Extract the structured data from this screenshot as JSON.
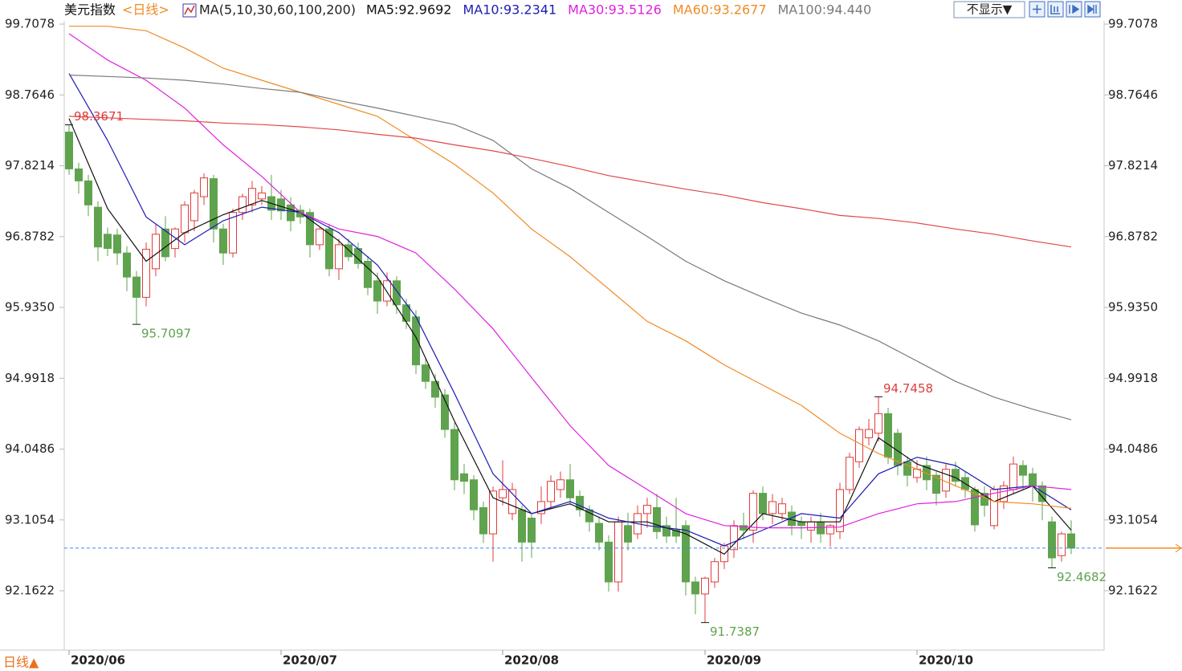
{
  "chart_data": {
    "type": "candlestick",
    "title": "美元指数",
    "subtitle": "<日线>",
    "ma_label": "MA(5,10,30,60,100,200)",
    "hide_button": "不显示▼",
    "period_tab": "日线▲",
    "up_color": "#e03c3c",
    "down_color": "#5fa34e",
    "ylim": [
      91.393,
      100.029
    ],
    "yticks": [
      99.7078,
      98.7646,
      97.8214,
      96.8782,
      {
        "value": 95.935,
        "label": "95.9350"
      },
      94.9918,
      94.0486,
      93.1054,
      92.1622
    ],
    "categories": [
      "2020/06",
      null,
      null,
      null,
      null,
      null,
      null,
      null,
      null,
      null,
      null,
      null,
      null,
      null,
      null,
      null,
      null,
      null,
      null,
      null,
      null,
      null,
      "2020/07",
      null,
      null,
      null,
      null,
      null,
      null,
      null,
      null,
      null,
      null,
      null,
      null,
      null,
      null,
      null,
      null,
      null,
      null,
      null,
      null,
      null,
      null,
      "2020/08",
      null,
      null,
      null,
      null,
      null,
      null,
      null,
      null,
      null,
      null,
      null,
      null,
      null,
      null,
      null,
      null,
      null,
      null,
      null,
      null,
      "2020/09",
      null,
      null,
      null,
      null,
      null,
      null,
      null,
      null,
      null,
      null,
      null,
      null,
      null,
      null,
      null,
      null,
      null,
      null,
      null,
      null,
      null,
      "2020/10",
      null,
      null,
      null,
      null,
      null,
      null,
      null,
      null,
      null,
      null,
      null,
      null,
      null,
      null,
      null,
      null
    ],
    "candles": [
      [
        98.27,
        98.3671,
        97.7,
        97.78
      ],
      [
        97.78,
        97.86,
        97.45,
        97.62
      ],
      [
        97.62,
        97.7,
        97.15,
        97.3
      ],
      [
        97.27,
        97.35,
        96.55,
        96.74
      ],
      [
        96.91,
        97.0,
        96.62,
        96.72
      ],
      [
        96.9,
        96.98,
        96.5,
        96.66
      ],
      [
        96.66,
        96.75,
        96.15,
        96.34
      ],
      [
        96.34,
        96.42,
        95.7097,
        96.07
      ],
      [
        96.07,
        96.8,
        95.95,
        96.71
      ],
      [
        96.45,
        97.05,
        96.35,
        96.91
      ],
      [
        96.98,
        97.15,
        96.55,
        96.61
      ],
      [
        96.72,
        97.0,
        96.6,
        96.98
      ],
      [
        96.93,
        97.35,
        96.8,
        97.3
      ],
      [
        97.09,
        97.5,
        96.95,
        97.46
      ],
      [
        97.41,
        97.72,
        97.3,
        97.66
      ],
      [
        97.65,
        97.7,
        96.8,
        96.98
      ],
      [
        96.98,
        97.05,
        96.5,
        96.66
      ],
      [
        96.66,
        97.25,
        96.6,
        97.2
      ],
      [
        97.2,
        97.45,
        97.1,
        97.41
      ],
      [
        97.3,
        97.62,
        97.2,
        97.52
      ],
      [
        97.38,
        97.55,
        97.3,
        97.46
      ],
      [
        97.41,
        97.7,
        97.1,
        97.23
      ],
      [
        97.38,
        97.5,
        97.1,
        97.22
      ],
      [
        97.3,
        97.4,
        96.95,
        97.09
      ],
      [
        97.23,
        97.3,
        97.05,
        97.14
      ],
      [
        97.2,
        97.25,
        96.6,
        96.77
      ],
      [
        96.77,
        97.0,
        96.7,
        96.98
      ],
      [
        96.98,
        97.05,
        96.35,
        96.45
      ],
      [
        96.45,
        96.85,
        96.3,
        96.77
      ],
      [
        96.77,
        96.85,
        96.55,
        96.61
      ],
      [
        96.72,
        96.8,
        96.45,
        96.52
      ],
      [
        96.55,
        96.62,
        96.1,
        96.2
      ],
      [
        96.29,
        96.4,
        95.85,
        96.02
      ],
      [
        96.02,
        96.4,
        95.95,
        96.29
      ],
      [
        96.29,
        96.35,
        95.85,
        95.97
      ],
      [
        95.97,
        96.05,
        95.65,
        95.75
      ],
      [
        95.81,
        95.9,
        95.05,
        95.17
      ],
      [
        95.17,
        95.25,
        94.85,
        94.95
      ],
      [
        94.95,
        95.05,
        94.6,
        94.74
      ],
      [
        94.77,
        94.85,
        94.2,
        94.31
      ],
      [
        94.31,
        94.4,
        93.5,
        93.64
      ],
      [
        93.72,
        93.85,
        93.45,
        93.62
      ],
      [
        93.64,
        93.7,
        93.1,
        93.24
      ],
      [
        93.27,
        93.35,
        92.8,
        92.92
      ],
      [
        92.92,
        93.55,
        92.55,
        93.49
      ],
      [
        93.4,
        93.9,
        93.3,
        93.51
      ],
      [
        93.19,
        93.6,
        93.1,
        93.51
      ],
      [
        93.24,
        93.3,
        92.55,
        92.81
      ],
      [
        93.13,
        93.2,
        92.6,
        92.81
      ],
      [
        93.19,
        93.55,
        93.05,
        93.35
      ],
      [
        93.35,
        93.7,
        93.25,
        93.62
      ],
      [
        93.51,
        93.75,
        93.4,
        93.64
      ],
      [
        93.64,
        93.85,
        93.3,
        93.4
      ],
      [
        93.42,
        93.5,
        93.15,
        93.24
      ],
      [
        93.24,
        93.3,
        92.95,
        93.08
      ],
      [
        93.06,
        93.15,
        92.7,
        92.81
      ],
      [
        92.81,
        92.9,
        92.15,
        92.28
      ],
      [
        92.28,
        93.15,
        92.15,
        93.08
      ],
      [
        93.03,
        93.2,
        92.7,
        92.81
      ],
      [
        92.92,
        93.3,
        92.85,
        93.19
      ],
      [
        93.19,
        93.4,
        93.0,
        93.3
      ],
      [
        93.27,
        93.45,
        92.85,
        92.95
      ],
      [
        93.03,
        93.15,
        92.8,
        92.89
      ],
      [
        92.97,
        93.4,
        92.8,
        92.89
      ],
      [
        93.03,
        93.1,
        92.1,
        92.28
      ],
      [
        92.28,
        92.35,
        91.85,
        92.12
      ],
      [
        92.12,
        92.35,
        91.7387,
        92.33
      ],
      [
        92.28,
        92.6,
        92.2,
        92.55
      ],
      [
        92.55,
        92.8,
        92.45,
        92.76
      ],
      [
        92.71,
        93.1,
        92.6,
        93.03
      ],
      [
        93.03,
        93.2,
        92.85,
        92.97
      ],
      [
        92.97,
        93.5,
        92.8,
        93.46
      ],
      [
        93.46,
        93.55,
        93.1,
        93.19
      ],
      [
        93.19,
        93.45,
        93.05,
        93.35
      ],
      [
        93.19,
        93.4,
        93.1,
        93.32
      ],
      [
        93.21,
        93.3,
        92.9,
        93.03
      ],
      [
        93.08,
        93.15,
        92.85,
        93.03
      ],
      [
        92.97,
        93.15,
        92.8,
        93.08
      ],
      [
        93.08,
        93.2,
        92.8,
        92.92
      ],
      [
        92.92,
        93.05,
        92.75,
        93.03
      ],
      [
        92.95,
        93.6,
        92.85,
        93.51
      ],
      [
        93.51,
        94.0,
        93.45,
        93.94
      ],
      [
        93.88,
        94.35,
        93.8,
        94.31
      ],
      [
        94.2,
        94.45,
        94.1,
        94.31
      ],
      [
        94.26,
        94.7458,
        94.15,
        94.52
      ],
      [
        94.52,
        94.6,
        93.85,
        93.94
      ],
      [
        94.26,
        94.32,
        93.7,
        93.83
      ],
      [
        93.88,
        93.95,
        93.55,
        93.7
      ],
      [
        93.67,
        93.9,
        93.6,
        93.78
      ],
      [
        93.83,
        93.95,
        93.5,
        93.64
      ],
      [
        93.7,
        93.75,
        93.3,
        93.46
      ],
      [
        93.49,
        93.85,
        93.4,
        93.78
      ],
      [
        93.78,
        93.88,
        93.55,
        93.62
      ],
      [
        93.67,
        93.75,
        93.4,
        93.51
      ],
      [
        93.51,
        93.55,
        92.95,
        93.04
      ],
      [
        93.46,
        93.55,
        93.15,
        93.3
      ],
      [
        93.03,
        93.56,
        92.98,
        93.51
      ],
      [
        93.35,
        93.62,
        93.25,
        93.56
      ],
      [
        93.51,
        93.95,
        93.45,
        93.85
      ],
      [
        93.83,
        93.9,
        93.5,
        93.7
      ],
      [
        93.72,
        93.8,
        93.35,
        93.56
      ],
      [
        93.56,
        93.62,
        93.1,
        93.35
      ],
      [
        93.08,
        93.15,
        92.4682,
        92.6
      ],
      [
        92.63,
        92.95,
        92.55,
        92.92
      ],
      [
        92.92,
        93.1,
        92.65,
        92.73
      ]
    ],
    "lines": {
      "x": [
        0,
        4,
        8,
        12,
        16,
        20,
        24,
        28,
        32,
        36,
        40,
        44,
        48,
        52,
        56,
        60,
        64,
        68,
        72,
        76,
        80,
        84,
        88,
        92,
        96,
        100,
        104
      ],
      "series": [
        {
          "name": "MA5:92.9692",
          "color": "#111111",
          "values": [
            98.45,
            97.25,
            96.55,
            96.93,
            97.17,
            97.36,
            97.2,
            96.82,
            96.34,
            95.54,
            94.42,
            93.4,
            93.19,
            93.32,
            93.08,
            93.08,
            92.92,
            92.65,
            93.19,
            93.08,
            93.08,
            94.2,
            93.85,
            93.67,
            93.35,
            93.56,
            92.97
          ]
        },
        {
          "name": "MA10:93.2341",
          "color": "#1c1cb4",
          "values": [
            99.05,
            98.16,
            97.14,
            96.77,
            97.09,
            97.27,
            97.2,
            96.93,
            96.5,
            95.81,
            94.79,
            93.72,
            93.19,
            93.35,
            93.13,
            93.03,
            92.97,
            92.76,
            92.97,
            93.19,
            93.13,
            93.72,
            93.94,
            93.83,
            93.51,
            93.56,
            93.24
          ]
        },
        {
          "name": "MA30:93.5126",
          "color": "#e020e0",
          "values": [
            99.58,
            99.23,
            98.96,
            98.59,
            98.1,
            97.68,
            97.2,
            96.98,
            96.88,
            96.66,
            96.18,
            95.65,
            95.0,
            94.36,
            93.83,
            93.51,
            93.19,
            93.03,
            93.0,
            93.0,
            93.01,
            93.19,
            93.32,
            93.35,
            93.46,
            93.56,
            93.51
          ]
        },
        {
          "name": "MA60:93.2677",
          "color": "#f08a24",
          "values": [
            99.68,
            99.68,
            99.62,
            99.39,
            99.12,
            98.96,
            98.8,
            98.64,
            98.48,
            98.16,
            97.84,
            97.46,
            96.98,
            96.61,
            96.18,
            95.75,
            95.49,
            95.17,
            94.9,
            94.63,
            94.26,
            93.99,
            93.78,
            93.56,
            93.35,
            93.32,
            93.26
          ]
        },
        {
          "name": "MA100:94.440",
          "color": "#7a7a7a",
          "values": [
            99.03,
            99.01,
            98.99,
            98.96,
            98.91,
            98.85,
            98.8,
            98.69,
            98.59,
            98.48,
            98.37,
            98.16,
            97.78,
            97.52,
            97.2,
            96.88,
            96.55,
            96.29,
            96.07,
            95.86,
            95.7,
            95.49,
            95.22,
            94.95,
            94.74,
            94.58,
            94.44
          ]
        },
        {
          "color": "#e04848",
          "values": [
            98.48,
            98.46,
            98.44,
            98.42,
            98.39,
            98.37,
            98.34,
            98.3,
            98.24,
            98.19,
            98.1,
            98.02,
            97.92,
            97.81,
            97.69,
            97.6,
            97.51,
            97.43,
            97.33,
            97.25,
            97.16,
            97.12,
            97.06,
            96.98,
            96.91,
            96.82,
            96.74
          ]
        }
      ]
    }
  }
}
